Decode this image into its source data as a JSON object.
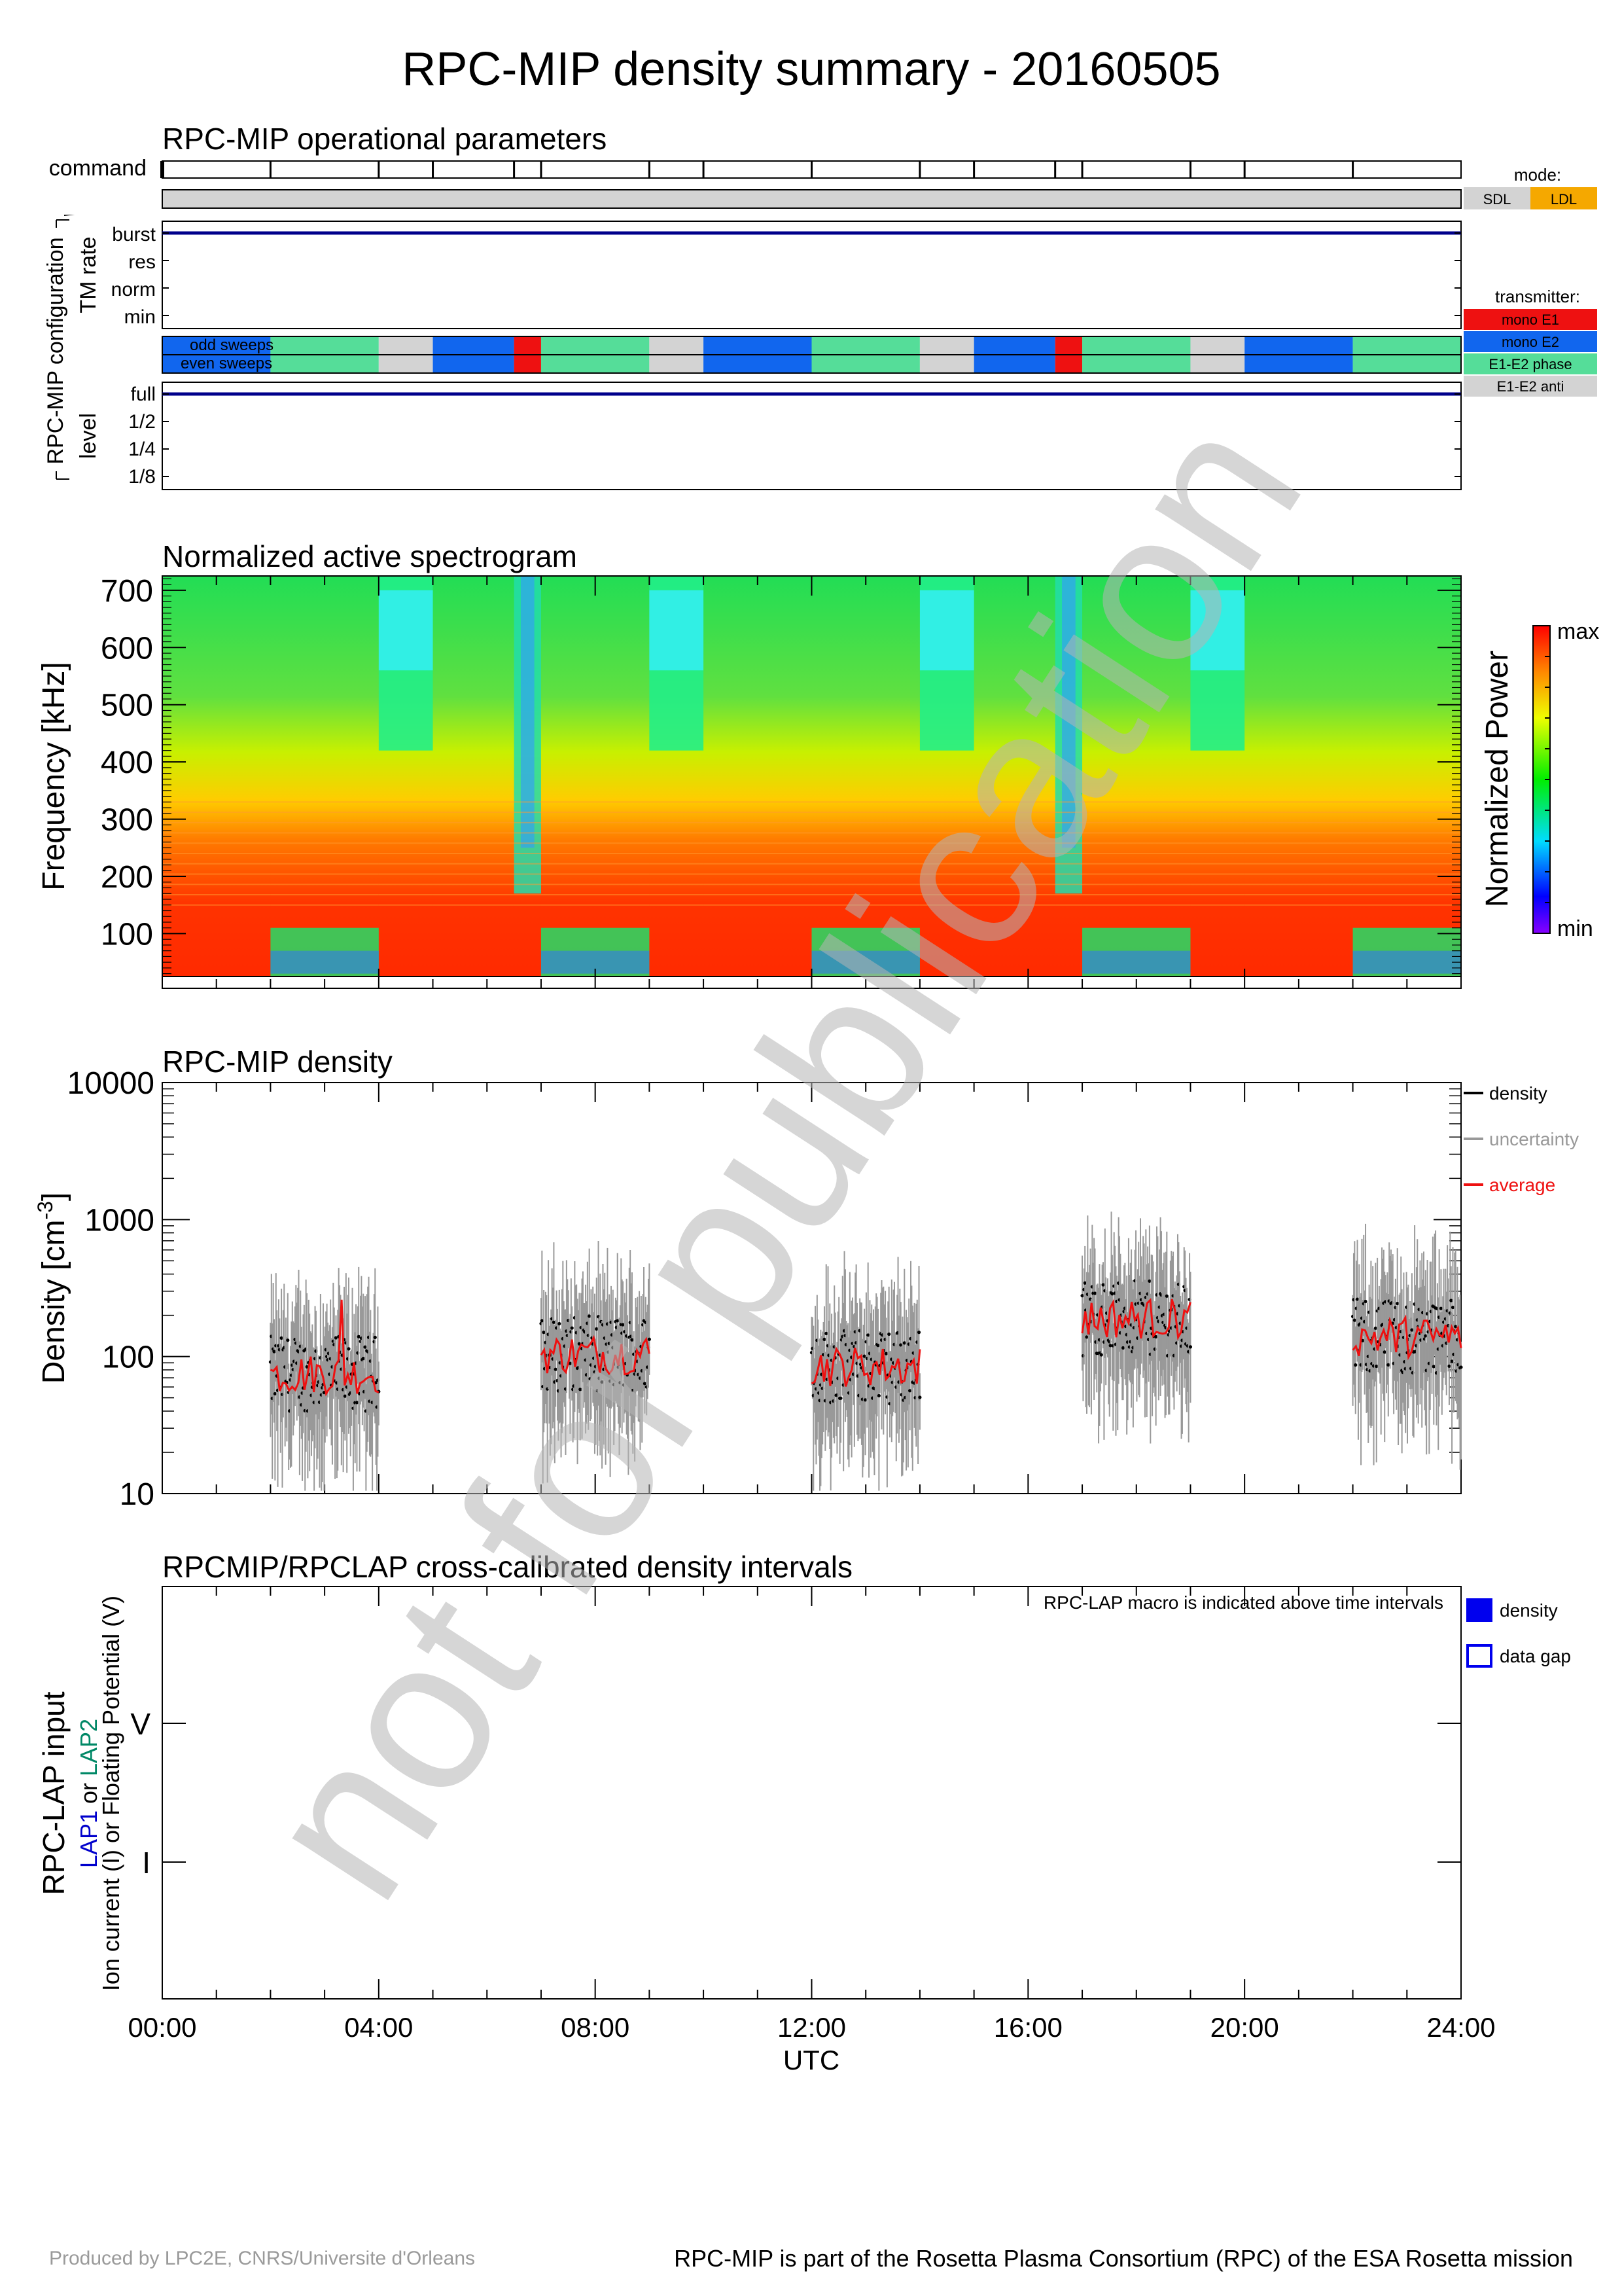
{
  "title": "RPC-MIP density summary - 20160505",
  "watermark": "not for publication",
  "footer": {
    "left": "Produced by LPC2E, CNRS/Universite d'Orleans",
    "right": "RPC-MIP is part of the Rosetta Plasma Consortium (RPC) of the ESA Rosetta mission"
  },
  "time_axis": {
    "ticks": [
      "00:00",
      "04:00",
      "08:00",
      "12:00",
      "16:00",
      "20:00",
      "24:00"
    ],
    "label": "UTC",
    "range_hours": [
      0,
      24
    ]
  },
  "operational": {
    "title": "RPC-MIP operational parameters",
    "command_label": "command",
    "command_times_h": [
      0,
      2,
      4,
      5,
      6.5,
      7,
      9,
      10,
      12,
      14,
      15,
      16.5,
      17,
      19,
      20,
      22
    ],
    "config_label": "RPC-MIP configuration",
    "tm_rate_label": "TM rate",
    "tm_rate_levels": [
      "burst",
      "res",
      "norm",
      "min"
    ],
    "tm_rate_value": "burst",
    "sweeps": {
      "odd": "odd sweeps",
      "even": "even sweeps"
    },
    "level_label": "level",
    "level_levels": [
      "full",
      "1/2",
      "1/4",
      "1/8"
    ],
    "level_value": "full",
    "mode_legend": {
      "title": "mode:",
      "items": [
        {
          "label": "SDL",
          "color": "#d3d3d3"
        },
        {
          "label": "LDL",
          "color": "#f5a800"
        }
      ]
    },
    "mode_segments": [
      {
        "start": 0,
        "end": 24,
        "mode": "SDL"
      }
    ],
    "transmitter_legend": {
      "title": "transmitter:",
      "items": [
        {
          "label": "mono E1",
          "color": "#ee1111"
        },
        {
          "label": "mono E2",
          "color": "#1166ee"
        },
        {
          "label": "E1-E2 phase",
          "color": "#55dd99"
        },
        {
          "label": "E1-E2 anti",
          "color": "#d3d3d3"
        }
      ]
    },
    "transmitter_segments": [
      {
        "start": 0,
        "end": 2,
        "tx": "mono E2"
      },
      {
        "start": 2,
        "end": 4,
        "tx": "E1-E2 phase"
      },
      {
        "start": 4,
        "end": 5,
        "tx": "E1-E2 anti"
      },
      {
        "start": 5,
        "end": 6.5,
        "tx": "mono E2"
      },
      {
        "start": 6.5,
        "end": 7,
        "tx": "mono E1"
      },
      {
        "start": 7,
        "end": 9,
        "tx": "E1-E2 phase"
      },
      {
        "start": 9,
        "end": 10,
        "tx": "E1-E2 anti"
      },
      {
        "start": 10,
        "end": 12,
        "tx": "mono E2"
      },
      {
        "start": 12,
        "end": 14,
        "tx": "E1-E2 phase"
      },
      {
        "start": 14,
        "end": 15,
        "tx": "E1-E2 anti"
      },
      {
        "start": 15,
        "end": 16.5,
        "tx": "mono E2"
      },
      {
        "start": 16.5,
        "end": 17,
        "tx": "mono E1"
      },
      {
        "start": 17,
        "end": 19,
        "tx": "E1-E2 phase"
      },
      {
        "start": 19,
        "end": 20,
        "tx": "E1-E2 anti"
      },
      {
        "start": 20,
        "end": 22,
        "tx": "mono E2"
      },
      {
        "start": 22,
        "end": 24,
        "tx": "E1-E2 phase"
      }
    ]
  },
  "spectrogram": {
    "title": "Normalized active spectrogram",
    "ylabel": "Frequency [kHz]",
    "yticks": [
      100,
      200,
      300,
      400,
      500,
      600,
      700
    ],
    "yrange": [
      25,
      725
    ],
    "colorbar_label": "Normalized Power",
    "colorbar_max": "max",
    "colorbar_min": "min"
  },
  "chart_data": [
    {
      "type": "scatter",
      "title": "RPC-MIP density",
      "xlabel": "UTC",
      "ylabel": "Density [cm",
      "ylabel_sup": "-3",
      "ylabel_end": "]",
      "yscale": "log",
      "ylim": [
        10,
        10000
      ],
      "yticks": [
        "10",
        "100",
        "1000",
        "10000"
      ],
      "xlim": [
        0,
        24
      ],
      "legend": [
        {
          "label": "density",
          "color": "#000000"
        },
        {
          "label": "uncertainty",
          "color": "#999999"
        },
        {
          "label": "average",
          "color": "#ee1111"
        }
      ],
      "legend_position": "right",
      "intervals": [
        {
          "start": 2.0,
          "end": 4.0,
          "density_level": 75,
          "average_peak": 260
        },
        {
          "start": 7.0,
          "end": 9.0,
          "density_level": 105
        },
        {
          "start": 12.0,
          "end": 14.0,
          "density_level": 85
        },
        {
          "start": 17.0,
          "end": 19.0,
          "density_level": 190
        },
        {
          "start": 22.0,
          "end": 24.0,
          "density_level": 140
        }
      ]
    },
    {
      "type": "table",
      "title": "RPCMIP/RPCLAP cross-calibrated density intervals",
      "note": "RPC-LAP macro is indicated above time intervals",
      "ylabel_main": "RPC-LAP input",
      "ylabel_lap1": "LAP1",
      "ylabel_or": " or ",
      "ylabel_lap2": "LAP2",
      "ylabel_sub": "Ion current (I) or Floating Potential (V)",
      "yticks": [
        "V",
        "I"
      ],
      "legend": [
        {
          "label": "density",
          "style": "filled",
          "color": "#0000ee"
        },
        {
          "label": "data gap",
          "style": "open",
          "color": "#0000ee"
        }
      ],
      "intervals": []
    }
  ]
}
